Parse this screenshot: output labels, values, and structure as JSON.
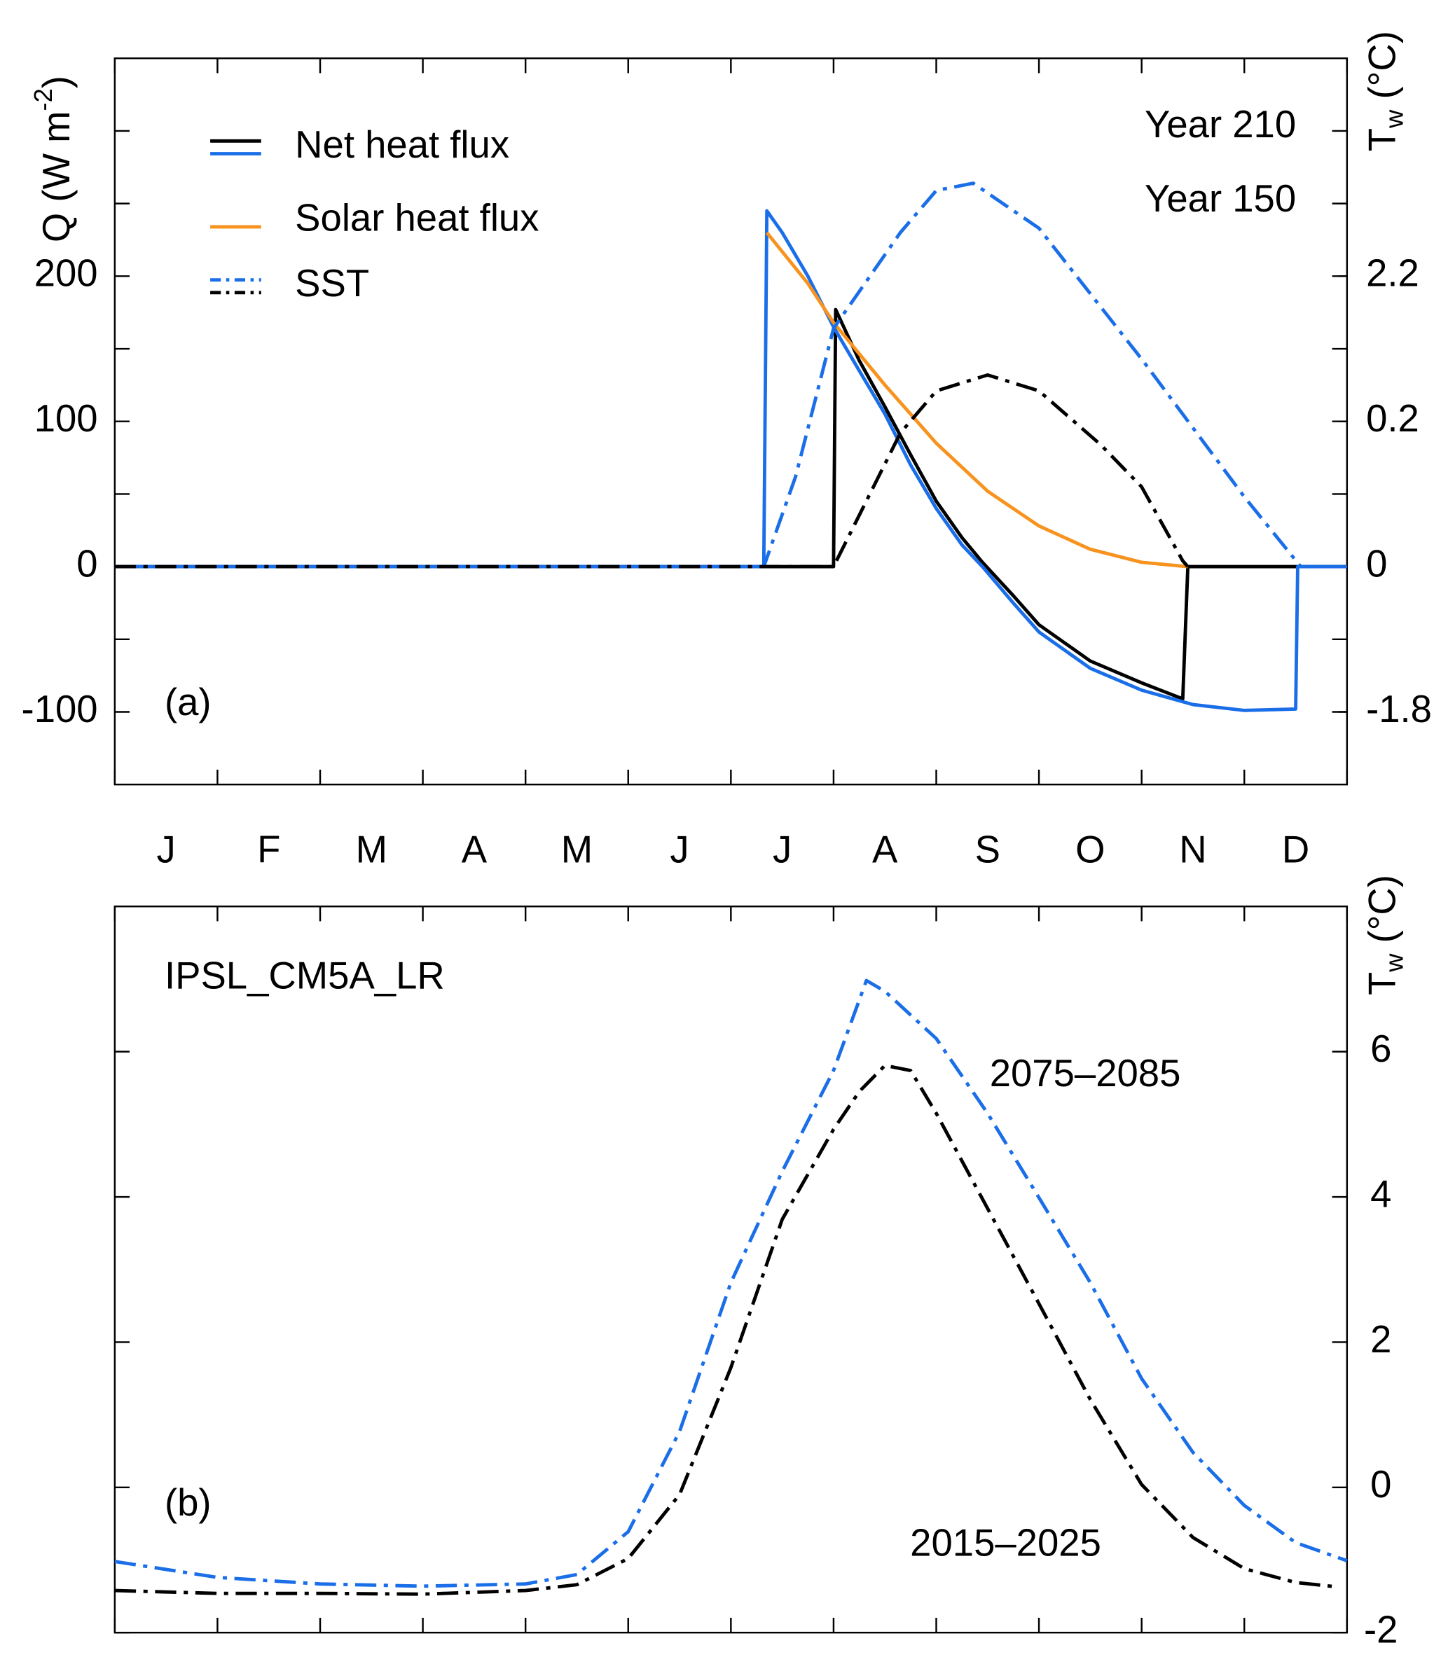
{
  "chart_data": [
    {
      "type": "line",
      "label": "(a)",
      "categories": [
        "J",
        "F",
        "M",
        "A",
        "M",
        "J",
        "J",
        "A",
        "S",
        "O",
        "N",
        "D"
      ],
      "xlim": [
        0,
        12
      ],
      "xticks": [
        0,
        1,
        2,
        3,
        4,
        5,
        6,
        7,
        8,
        9,
        10,
        11,
        12
      ],
      "y_label": [
        "Q (W m",
        "-2",
        ")"
      ],
      "y_axis_side": "left",
      "ylim": [
        -150,
        350
      ],
      "yticks": [
        -100,
        0,
        100,
        200
      ],
      "yminor_ticks": [
        -50,
        50,
        150,
        250,
        300
      ],
      "y2_label": [
        "T",
        "w",
        " (°C)"
      ],
      "y2lim": [
        -150,
        350
      ],
      "y2ticks": [
        {
          "value": -100,
          "label": "-1.8"
        },
        0,
        {
          "value": 100,
          "label": "0.2"
        },
        {
          "value": 200,
          "label": "2.2"
        }
      ],
      "annotations": [
        {
          "text": "Year 210",
          "color": "#1a6ee8"
        },
        {
          "text": "Year 150",
          "color": "#000000"
        }
      ],
      "series": [
        {
          "name": "Net heat flux",
          "color": "#000000",
          "style": "solid",
          "axis": "y",
          "x": [
            0,
            7.0,
            7.02,
            7.25,
            7.5,
            7.75,
            8,
            8.25,
            8.45,
            8.75,
            9,
            9.5,
            10,
            10.4,
            10.45,
            12
          ],
          "values": [
            0,
            0,
            177,
            142,
            110,
            77,
            45,
            20,
            3,
            -20,
            -40,
            -65,
            -80,
            -91,
            0,
            0
          ]
        },
        {
          "name": "Net heat flux",
          "color": "#1a6ee8",
          "style": "solid",
          "axis": "y",
          "x": [
            0,
            6.32,
            6.35,
            6.5,
            6.75,
            7,
            7.25,
            7.5,
            7.75,
            8,
            8.25,
            8.45,
            8.75,
            9,
            9.5,
            10,
            10.5,
            11,
            11.5,
            11.52,
            12
          ],
          "values": [
            0,
            0,
            245,
            230,
            200,
            165,
            135,
            105,
            70,
            40,
            15,
            0,
            -25,
            -45,
            -70,
            -85,
            -95,
            -99,
            -98,
            0,
            0
          ]
        },
        {
          "name": "Solar heat flux",
          "color": "#f7931e",
          "style": "solid",
          "axis": "y",
          "x": [
            6.35,
            6.75,
            7,
            7.5,
            8,
            8.5,
            9,
            9.5,
            10,
            10.45
          ],
          "values": [
            230,
            195,
            168,
            125,
            85,
            52,
            28,
            12,
            3,
            0
          ]
        },
        {
          "name": "SST",
          "color": "#1a6ee8",
          "style": "dashdot",
          "axis": "y2",
          "x": [
            0,
            6.32,
            6.63,
            7,
            7.65,
            8,
            8.36,
            9,
            10,
            11,
            11.55
          ],
          "values": [
            0,
            0,
            62,
            164,
            230,
            259,
            264,
            233,
            143,
            48,
            0
          ]
        },
        {
          "name": "SST",
          "color": "#000000",
          "style": "dashdot",
          "axis": "y2",
          "x": [
            0,
            7.0,
            7.65,
            8,
            8.5,
            9,
            9.6,
            10,
            10.4,
            10.45
          ],
          "values": [
            0,
            0,
            92,
            121,
            132,
            121,
            84,
            55,
            4,
            0
          ]
        }
      ]
    },
    {
      "type": "line",
      "label": "(b)",
      "model": "IPSL_CM5A_LR",
      "xlim": [
        0,
        12
      ],
      "xticks": [
        0,
        1,
        2,
        3,
        4,
        5,
        6,
        7,
        8,
        9,
        10,
        11,
        12
      ],
      "y_axis_side": "right",
      "y_label": [
        "T",
        "w",
        " (°C)"
      ],
      "ylim": [
        -2,
        8
      ],
      "yticks": [
        -2,
        0,
        2,
        4,
        6
      ],
      "series": [
        {
          "name": "2075–2085",
          "color": "#1a6ee8",
          "style": "dashdot",
          "axis": "y",
          "x": [
            0,
            1,
            2,
            3,
            4,
            4.5,
            5,
            5.5,
            6,
            6.5,
            7,
            7.32,
            7.5,
            8,
            8.5,
            9,
            9.5,
            10,
            10.5,
            11,
            11.5,
            12
          ],
          "values": [
            -1.02,
            -1.24,
            -1.33,
            -1.36,
            -1.33,
            -1.2,
            -0.61,
            0.77,
            2.82,
            4.35,
            5.74,
            6.98,
            6.83,
            6.18,
            5.15,
            3.99,
            2.82,
            1.5,
            0.48,
            -0.25,
            -0.76,
            -1.01
          ]
        },
        {
          "name": "2015–2025",
          "color": "#000000",
          "style": "dashdot",
          "axis": "y",
          "x": [
            0,
            1,
            2,
            3,
            4,
            4.5,
            5,
            5.5,
            6,
            6.5,
            7,
            7.25,
            7.5,
            7.75,
            8,
            8.5,
            9,
            9.5,
            10,
            10.5,
            11,
            11.5,
            11.9
          ],
          "values": [
            -1.42,
            -1.46,
            -1.46,
            -1.47,
            -1.42,
            -1.34,
            -0.98,
            -0.1,
            1.65,
            3.69,
            4.93,
            5.45,
            5.81,
            5.74,
            5.15,
            3.84,
            2.53,
            1.21,
            0.04,
            -0.69,
            -1.12,
            -1.31,
            -1.37
          ]
        }
      ]
    }
  ]
}
